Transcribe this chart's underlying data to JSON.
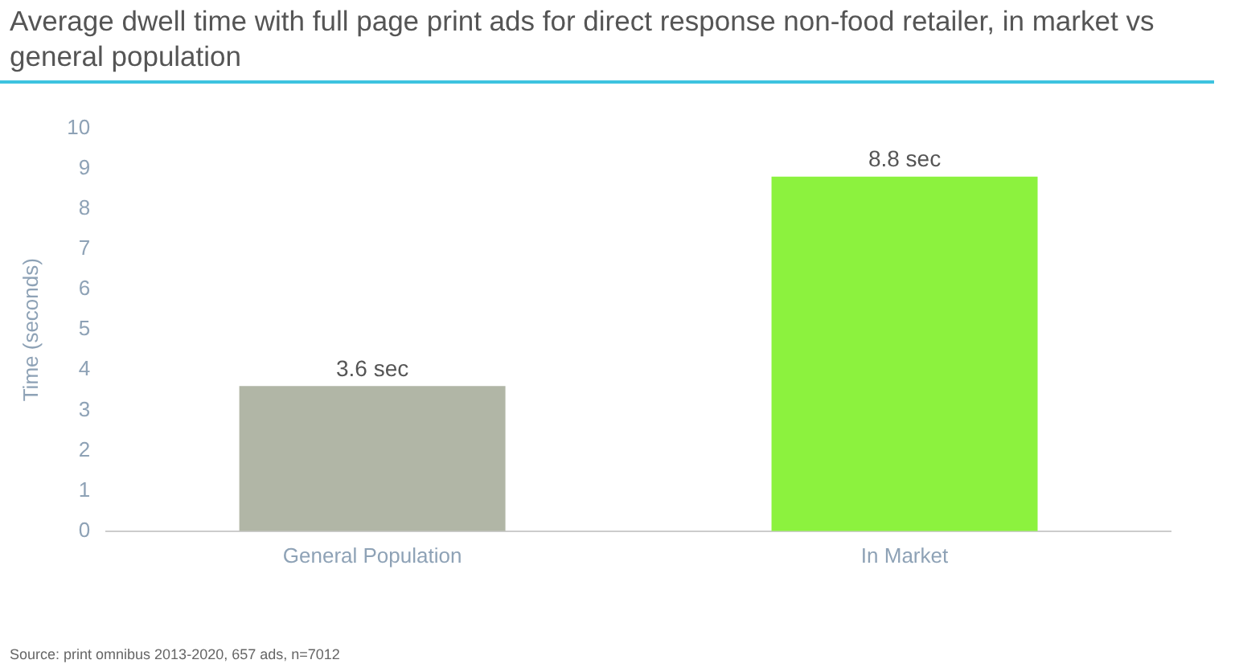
{
  "chart_data": {
    "type": "bar",
    "title": "Average dwell time with full page print ads for direct response non-food retailer, in market vs general population",
    "ylabel": "Time (seconds)",
    "categories": [
      "General Population",
      "In Market"
    ],
    "values": [
      3.6,
      8.8
    ],
    "colors": [
      "#b1b6a6",
      "#8cf23e"
    ],
    "value_labels": [
      "3.6 sec",
      "8.8 sec"
    ],
    "ylim": [
      0,
      10
    ],
    "yticks": [
      0,
      1,
      2,
      3,
      4,
      5,
      6,
      7,
      8,
      9,
      10
    ],
    "grid": false,
    "legend": false,
    "annotations": [
      "Source: print omnibus 2013-2020, 657 ads, n=7012"
    ]
  }
}
